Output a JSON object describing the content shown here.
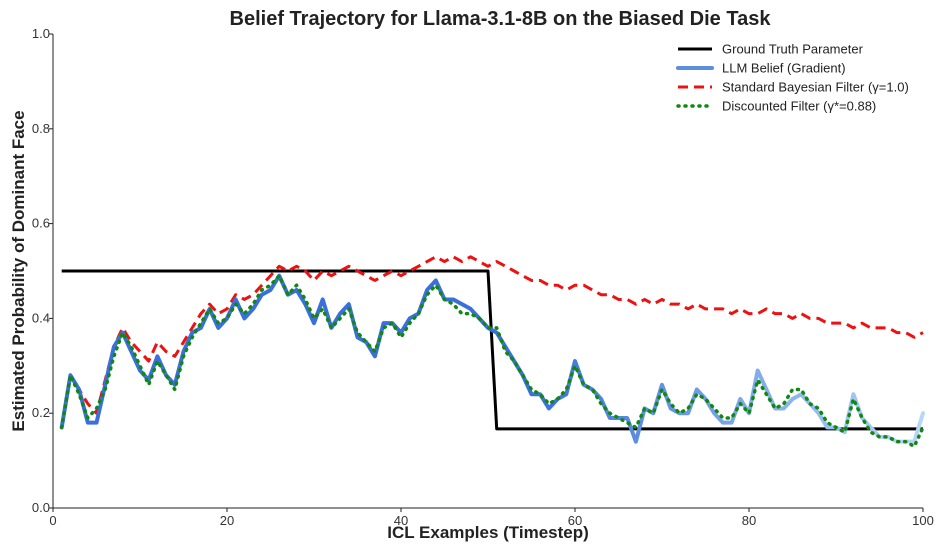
{
  "chart_data": {
    "type": "line",
    "title": "Belief Trajectory for Llama-3.1-8B on the Biased Die Task",
    "xlabel": "ICL Examples (Timestep)",
    "ylabel": "Estimated Probability of Dominant Face",
    "xlim": [
      0,
      100
    ],
    "ylim": [
      0,
      1
    ],
    "xticks": [
      0,
      20,
      40,
      60,
      80,
      100
    ],
    "yticks": [
      0.0,
      0.2,
      0.4,
      0.6,
      0.8,
      1.0
    ],
    "xtick_labels": [
      "0",
      "20",
      "40",
      "60",
      "80",
      "100"
    ],
    "ytick_labels": [
      "0.0",
      "0.2",
      "0.4",
      "0.6",
      "0.8",
      "1.0"
    ],
    "legend_position": "top-right",
    "gradient": {
      "start": "#3a6fdc",
      "end": "#b7d8f5"
    },
    "series": [
      {
        "name": "Ground Truth Parameter",
        "color": "#000000",
        "style": "solid",
        "x": [
          1,
          50,
          51,
          100
        ],
        "y": [
          0.5,
          0.5,
          0.167,
          0.167
        ]
      },
      {
        "name": "LLM Belief (Gradient)",
        "color": "#5b8de0",
        "style": "gradient",
        "x": [
          1,
          2,
          3,
          4,
          5,
          6,
          7,
          8,
          9,
          10,
          11,
          12,
          13,
          14,
          15,
          16,
          17,
          18,
          19,
          20,
          21,
          22,
          23,
          24,
          25,
          26,
          27,
          28,
          29,
          30,
          31,
          32,
          33,
          34,
          35,
          36,
          37,
          38,
          39,
          40,
          41,
          42,
          43,
          44,
          45,
          46,
          47,
          48,
          49,
          50,
          51,
          52,
          53,
          54,
          55,
          56,
          57,
          58,
          59,
          60,
          61,
          62,
          63,
          64,
          65,
          66,
          67,
          68,
          69,
          70,
          71,
          72,
          73,
          74,
          75,
          76,
          77,
          78,
          79,
          80,
          81,
          82,
          83,
          84,
          85,
          86,
          87,
          88,
          89,
          90,
          91,
          92,
          93,
          94,
          95,
          96,
          97,
          98,
          99,
          100
        ],
        "y": [
          0.17,
          0.28,
          0.25,
          0.18,
          0.18,
          0.26,
          0.34,
          0.37,
          0.33,
          0.29,
          0.27,
          0.32,
          0.28,
          0.26,
          0.33,
          0.37,
          0.38,
          0.42,
          0.38,
          0.4,
          0.44,
          0.4,
          0.42,
          0.45,
          0.46,
          0.49,
          0.45,
          0.46,
          0.43,
          0.39,
          0.44,
          0.38,
          0.41,
          0.43,
          0.36,
          0.35,
          0.32,
          0.39,
          0.39,
          0.37,
          0.4,
          0.41,
          0.46,
          0.48,
          0.44,
          0.44,
          0.43,
          0.42,
          0.4,
          0.38,
          0.37,
          0.34,
          0.31,
          0.28,
          0.24,
          0.24,
          0.21,
          0.23,
          0.24,
          0.31,
          0.26,
          0.25,
          0.23,
          0.19,
          0.19,
          0.19,
          0.14,
          0.21,
          0.2,
          0.26,
          0.21,
          0.2,
          0.2,
          0.25,
          0.23,
          0.2,
          0.18,
          0.18,
          0.23,
          0.2,
          0.29,
          0.25,
          0.21,
          0.21,
          0.23,
          0.24,
          0.22,
          0.2,
          0.17,
          0.17,
          0.16,
          0.24,
          0.19,
          0.17,
          0.15,
          0.15,
          0.14,
          0.14,
          0.14,
          0.2
        ]
      },
      {
        "name": "Standard Bayesian Filter (γ=1.0)",
        "color": "#ee1111",
        "style": "dashed",
        "x": [
          1,
          2,
          3,
          4,
          5,
          6,
          7,
          8,
          9,
          10,
          11,
          12,
          13,
          14,
          15,
          16,
          17,
          18,
          19,
          20,
          21,
          22,
          23,
          24,
          25,
          26,
          27,
          28,
          29,
          30,
          31,
          32,
          33,
          34,
          35,
          36,
          37,
          38,
          39,
          40,
          41,
          42,
          43,
          44,
          45,
          46,
          47,
          48,
          49,
          50,
          51,
          52,
          53,
          54,
          55,
          56,
          57,
          58,
          59,
          60,
          61,
          62,
          63,
          64,
          65,
          66,
          67,
          68,
          69,
          70,
          71,
          72,
          73,
          74,
          75,
          76,
          77,
          78,
          79,
          80,
          81,
          82,
          83,
          84,
          85,
          86,
          87,
          88,
          89,
          90,
          91,
          92,
          93,
          94,
          95,
          96,
          97,
          98,
          99,
          100
        ],
        "y": [
          0.17,
          0.28,
          0.25,
          0.22,
          0.2,
          0.27,
          0.34,
          0.38,
          0.35,
          0.33,
          0.31,
          0.35,
          0.33,
          0.32,
          0.35,
          0.38,
          0.41,
          0.43,
          0.41,
          0.42,
          0.45,
          0.44,
          0.45,
          0.47,
          0.49,
          0.51,
          0.5,
          0.51,
          0.5,
          0.48,
          0.5,
          0.49,
          0.5,
          0.51,
          0.5,
          0.49,
          0.48,
          0.49,
          0.5,
          0.49,
          0.5,
          0.51,
          0.52,
          0.53,
          0.52,
          0.53,
          0.52,
          0.53,
          0.52,
          0.51,
          0.52,
          0.51,
          0.5,
          0.49,
          0.48,
          0.48,
          0.47,
          0.47,
          0.46,
          0.47,
          0.47,
          0.46,
          0.45,
          0.45,
          0.44,
          0.44,
          0.43,
          0.44,
          0.43,
          0.44,
          0.43,
          0.43,
          0.42,
          0.43,
          0.42,
          0.42,
          0.42,
          0.41,
          0.42,
          0.41,
          0.41,
          0.42,
          0.41,
          0.41,
          0.4,
          0.41,
          0.4,
          0.4,
          0.39,
          0.39,
          0.39,
          0.38,
          0.39,
          0.38,
          0.38,
          0.38,
          0.37,
          0.37,
          0.36,
          0.37
        ]
      },
      {
        "name": "Discounted Filter (γ*=0.88)",
        "color": "#118811",
        "style": "dotted",
        "x": [
          1,
          2,
          3,
          4,
          5,
          6,
          7,
          8,
          9,
          10,
          11,
          12,
          13,
          14,
          15,
          16,
          17,
          18,
          19,
          20,
          21,
          22,
          23,
          24,
          25,
          26,
          27,
          28,
          29,
          30,
          31,
          32,
          33,
          34,
          35,
          36,
          37,
          38,
          39,
          40,
          41,
          42,
          43,
          44,
          45,
          46,
          47,
          48,
          49,
          50,
          51,
          52,
          53,
          54,
          55,
          56,
          57,
          58,
          59,
          60,
          61,
          62,
          63,
          64,
          65,
          66,
          67,
          68,
          69,
          70,
          71,
          72,
          73,
          74,
          75,
          76,
          77,
          78,
          79,
          80,
          81,
          82,
          83,
          84,
          85,
          86,
          87,
          88,
          89,
          90,
          91,
          92,
          93,
          94,
          95,
          96,
          97,
          98,
          99,
          100
        ],
        "y": [
          0.17,
          0.28,
          0.24,
          0.19,
          0.21,
          0.25,
          0.32,
          0.37,
          0.34,
          0.3,
          0.26,
          0.31,
          0.28,
          0.25,
          0.32,
          0.36,
          0.39,
          0.42,
          0.39,
          0.4,
          0.43,
          0.41,
          0.43,
          0.46,
          0.47,
          0.49,
          0.45,
          0.47,
          0.44,
          0.4,
          0.42,
          0.38,
          0.4,
          0.42,
          0.37,
          0.35,
          0.33,
          0.38,
          0.39,
          0.36,
          0.39,
          0.41,
          0.45,
          0.47,
          0.44,
          0.43,
          0.41,
          0.41,
          0.4,
          0.38,
          0.38,
          0.33,
          0.31,
          0.28,
          0.25,
          0.24,
          0.22,
          0.23,
          0.25,
          0.3,
          0.26,
          0.25,
          0.22,
          0.2,
          0.19,
          0.18,
          0.17,
          0.21,
          0.2,
          0.25,
          0.22,
          0.2,
          0.21,
          0.24,
          0.23,
          0.21,
          0.19,
          0.19,
          0.22,
          0.2,
          0.27,
          0.24,
          0.21,
          0.22,
          0.25,
          0.25,
          0.22,
          0.21,
          0.18,
          0.17,
          0.16,
          0.23,
          0.19,
          0.16,
          0.15,
          0.15,
          0.14,
          0.14,
          0.13,
          0.17
        ]
      }
    ]
  }
}
